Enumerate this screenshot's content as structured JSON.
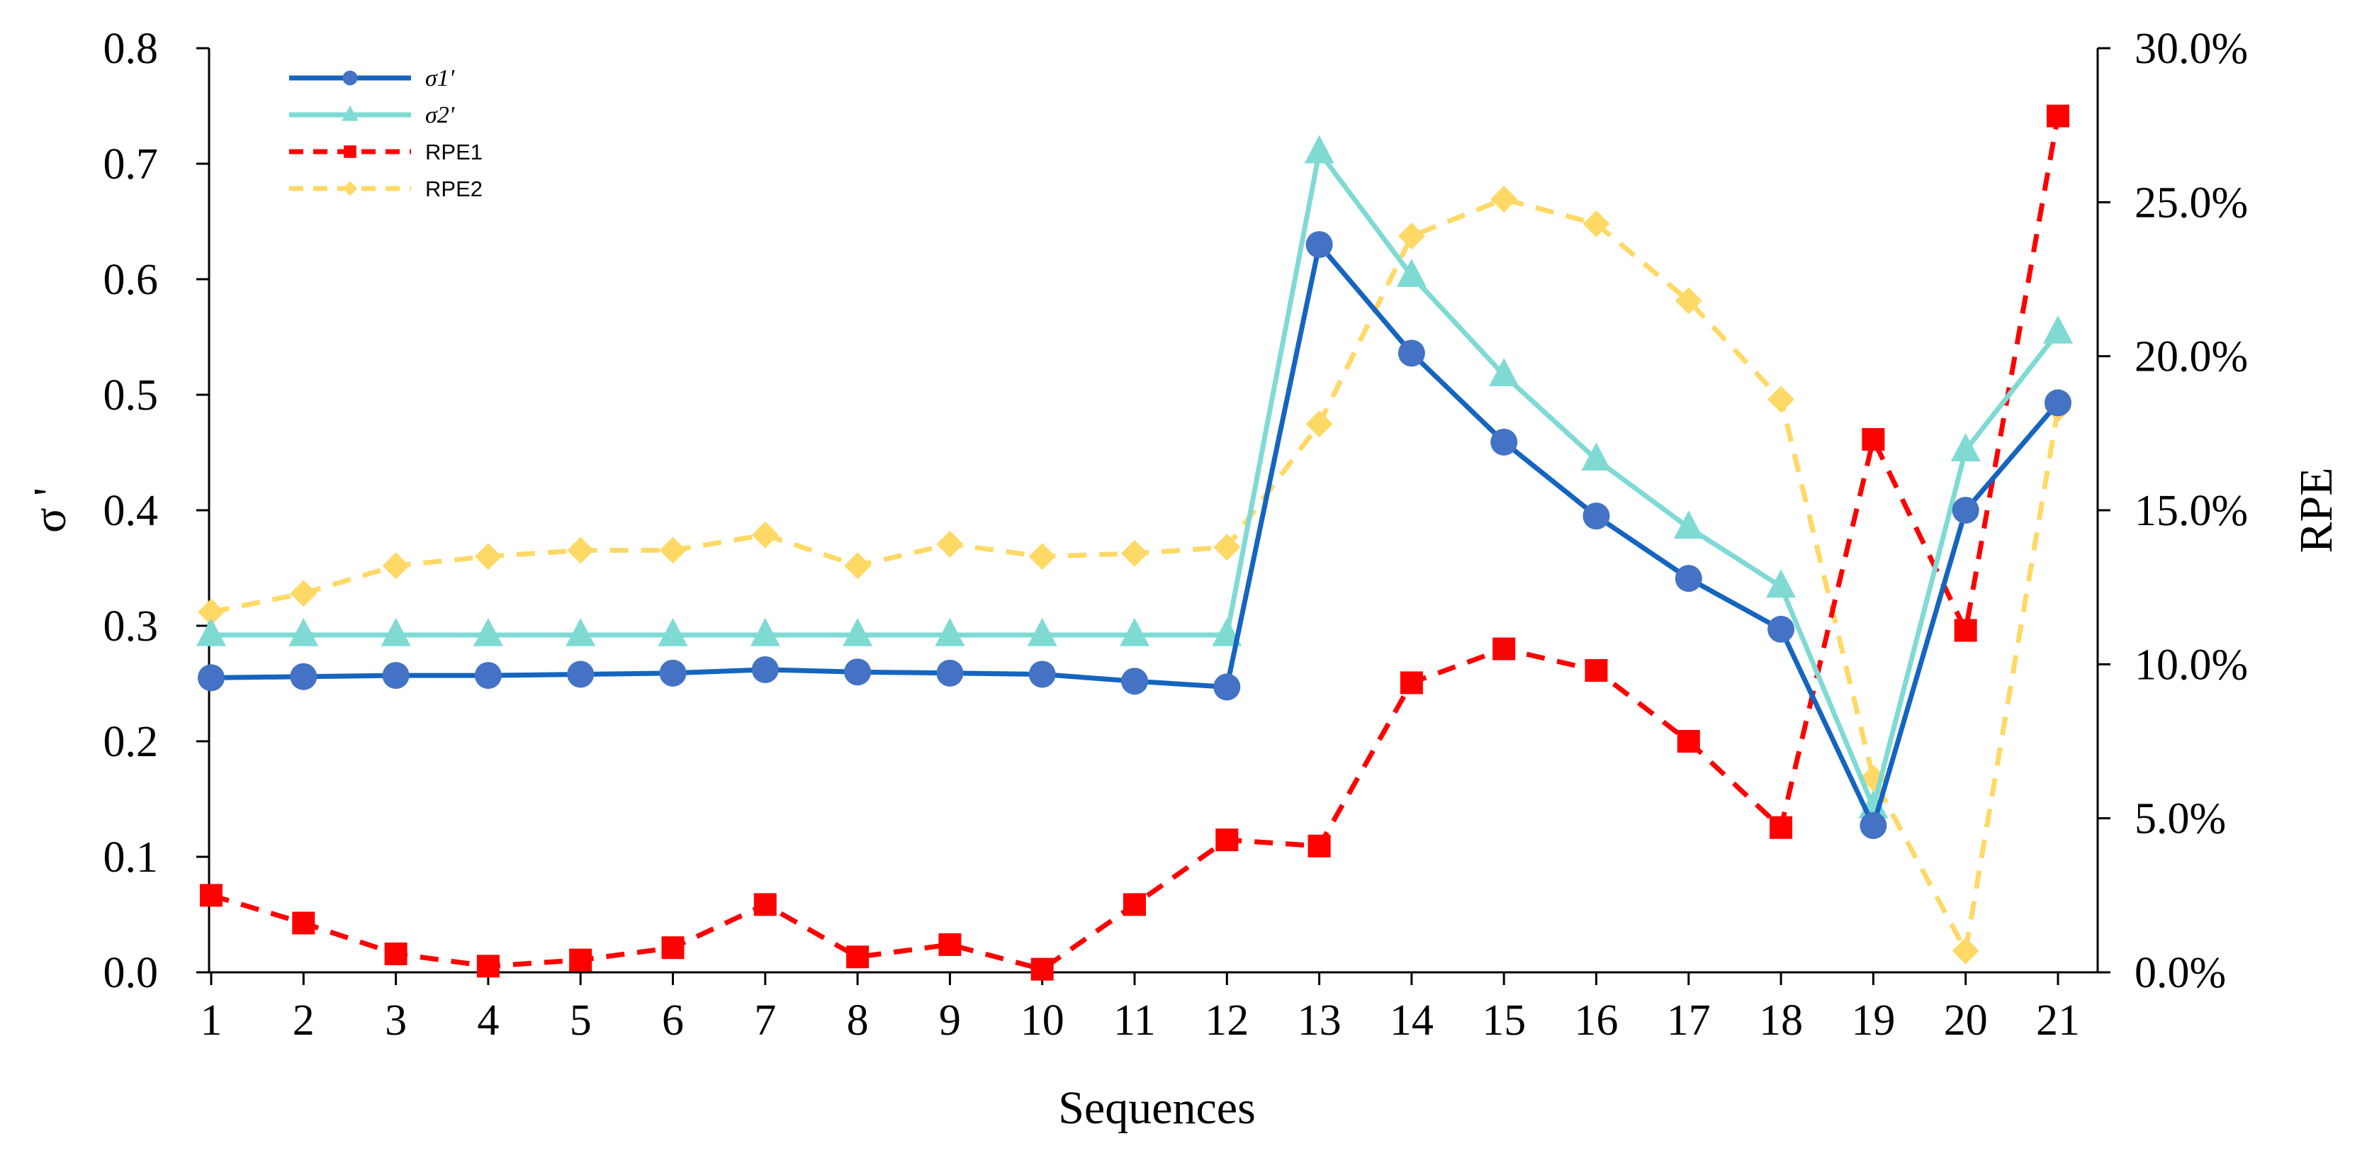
{
  "chart_data": {
    "type": "line",
    "title": "",
    "xlabel": "Sequences",
    "ylabel_left": "σ '",
    "ylabel_right": "RPE",
    "x": [
      1,
      2,
      3,
      4,
      5,
      6,
      7,
      8,
      9,
      10,
      11,
      12,
      13,
      14,
      15,
      16,
      17,
      18,
      19,
      20,
      21
    ],
    "x_tick_labels": [
      "1",
      "2",
      "3",
      "4",
      "5",
      "6",
      "7",
      "8",
      "9",
      "10",
      "11",
      "12",
      "13",
      "14",
      "15",
      "16",
      "17",
      "18",
      "19",
      "20",
      "21"
    ],
    "ylim_left": [
      0,
      0.8
    ],
    "ylim_right": [
      0,
      0.3
    ],
    "y_left_ticks": [
      "0.0",
      "0.1",
      "0.2",
      "0.3",
      "0.4",
      "0.5",
      "0.6",
      "0.7",
      "0.8"
    ],
    "y_right_ticks": [
      "0.0%",
      "5.0%",
      "10.0%",
      "15.0%",
      "20.0%",
      "25.0%",
      "30.0%"
    ],
    "grid": false,
    "legend_position": "top-left",
    "series": [
      {
        "name": "σ1'",
        "axis": "left",
        "color": "#1565C0",
        "marker_color": "#4472C4",
        "marker": "circle",
        "dash": "solid",
        "values": [
          0.255,
          0.256,
          0.257,
          0.257,
          0.258,
          0.259,
          0.262,
          0.26,
          0.259,
          0.258,
          0.252,
          0.247,
          0.63,
          0.536,
          0.459,
          0.395,
          0.341,
          0.297,
          0.127,
          0.4,
          0.493
        ]
      },
      {
        "name": "σ2'",
        "axis": "left",
        "color": "#7FDAD4",
        "marker_color": "#7FDAD4",
        "marker": "triangle",
        "dash": "solid",
        "values": [
          0.292,
          0.292,
          0.292,
          0.292,
          0.292,
          0.292,
          0.292,
          0.292,
          0.292,
          0.292,
          0.292,
          0.292,
          0.71,
          0.603,
          0.517,
          0.444,
          0.385,
          0.334,
          0.143,
          0.452,
          0.554
        ]
      },
      {
        "name": "RPE1",
        "axis": "right",
        "color": "#FF0000",
        "marker_color": "#FF0000",
        "marker": "square",
        "dash": "dashed",
        "values": [
          0.025,
          0.016,
          0.006,
          0.002,
          0.004,
          0.008,
          0.022,
          0.005,
          0.009,
          0.001,
          0.022,
          0.043,
          0.041,
          0.094,
          0.105,
          0.098,
          0.075,
          0.047,
          0.173,
          0.111,
          0.278
        ]
      },
      {
        "name": "RPE2",
        "axis": "right",
        "color": "#FFD966",
        "marker_color": "#FFD966",
        "marker": "diamond",
        "dash": "dashed",
        "values": [
          0.117,
          0.123,
          0.132,
          0.135,
          0.137,
          0.137,
          0.142,
          0.132,
          0.139,
          0.135,
          0.136,
          0.138,
          0.178,
          0.239,
          0.251,
          0.243,
          0.218,
          0.186,
          0.063,
          0.007,
          0.183
        ]
      }
    ]
  }
}
